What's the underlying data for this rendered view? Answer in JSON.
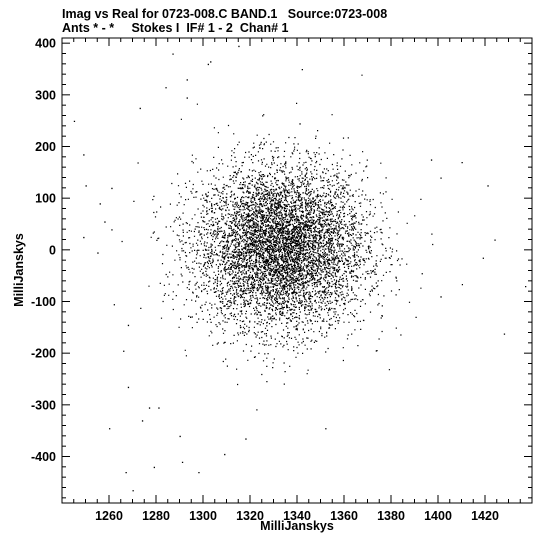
{
  "chart_data": {
    "type": "scatter",
    "title": "Imag vs Real for 0723-008.C BAND.1   Source:0723-008",
    "subtitle": "Ants * - *     Stokes I  IF# 1 - 2  Chan# 1",
    "xlabel": "MilliJanskys",
    "ylabel": "MilliJanskys",
    "xlim": [
      1240,
      1440
    ],
    "ylim": [
      -490,
      410
    ],
    "xticks": [
      1260,
      1280,
      1300,
      1320,
      1340,
      1360,
      1380,
      1400,
      1420
    ],
    "yticks": [
      400,
      300,
      200,
      100,
      0,
      -100,
      -200,
      -300,
      -400
    ],
    "grid": false,
    "legend": "none",
    "marker_color": "#000000",
    "distribution": {
      "center": [
        1333,
        5
      ],
      "std": [
        18,
        78
      ],
      "count": 60000
    },
    "outliers": [
      [
        1245,
        250
      ],
      [
        1249,
        185
      ],
      [
        1250,
        125
      ],
      [
        1256,
        90
      ],
      [
        1258,
        55
      ],
      [
        1261,
        40
      ],
      [
        1249,
        25
      ],
      [
        1255,
        -5
      ],
      [
        1262,
        -105
      ],
      [
        1268,
        -145
      ],
      [
        1268,
        -265
      ],
      [
        1266,
        -195
      ],
      [
        1260,
        -345
      ],
      [
        1267,
        -430
      ],
      [
        1270,
        -465
      ],
      [
        1279,
        -420
      ],
      [
        1291,
        -410
      ],
      [
        1290,
        -360
      ],
      [
        1281,
        -305
      ],
      [
        1293,
        295
      ],
      [
        1293,
        330
      ],
      [
        1302,
        360
      ],
      [
        1303,
        365
      ],
      [
        1315,
        395
      ],
      [
        1287,
        380
      ],
      [
        1284,
        315
      ],
      [
        1273,
        275
      ],
      [
        1342,
        350
      ],
      [
        1341,
        245
      ],
      [
        1352,
        -345
      ],
      [
        1318,
        -365
      ],
      [
        1397,
        175
      ],
      [
        1410,
        170
      ],
      [
        1421,
        125
      ],
      [
        1424,
        20
      ],
      [
        1419,
        -15
      ],
      [
        1437,
        -70
      ],
      [
        1428,
        -162
      ],
      [
        1401,
        -90
      ],
      [
        1393,
        -45
      ],
      [
        1261,
        120
      ],
      [
        1277,
        -305
      ],
      [
        1309,
        -395
      ],
      [
        1298,
        -430
      ],
      [
        1274,
        -330
      ],
      [
        1401,
        140
      ]
    ]
  }
}
